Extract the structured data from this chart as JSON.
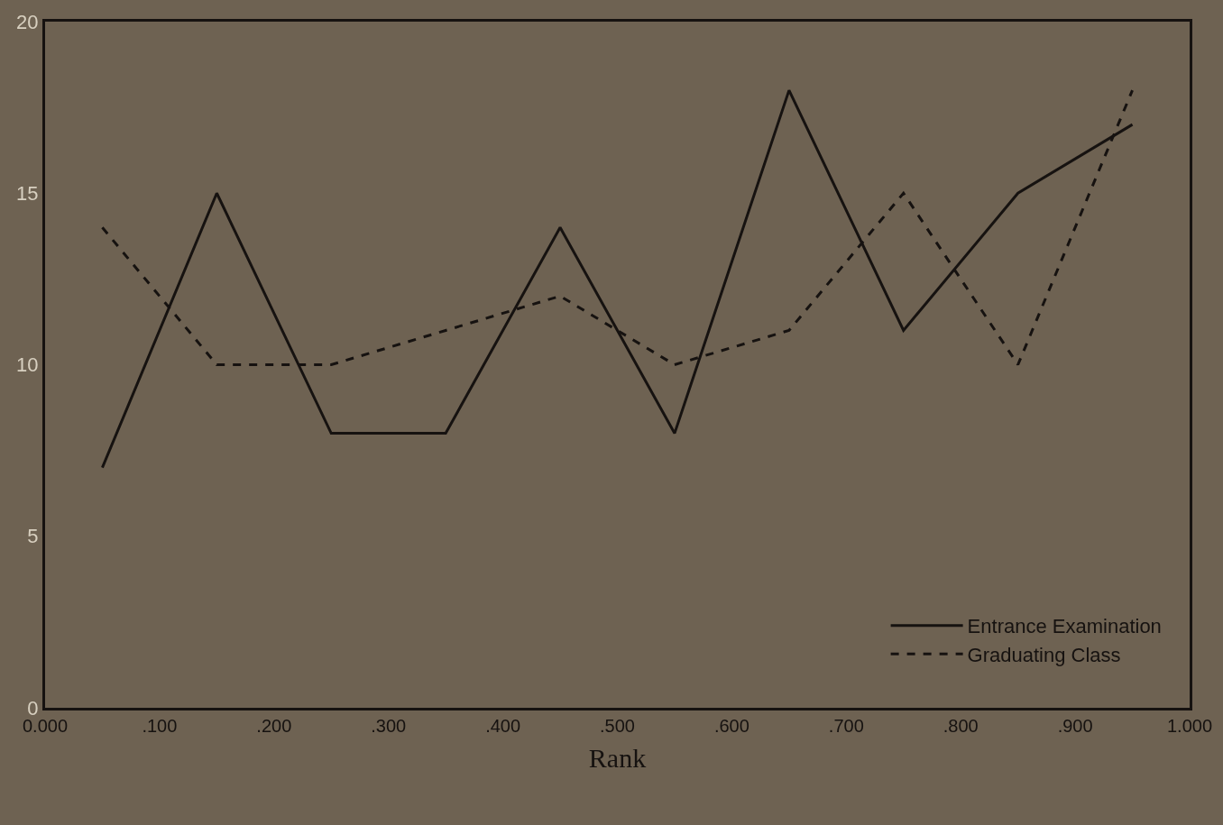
{
  "chart_data": {
    "type": "line",
    "xlabel": "Rank",
    "x": [
      0.05,
      0.15,
      0.25,
      0.35,
      0.45,
      0.55,
      0.65,
      0.75,
      0.85,
      0.95
    ],
    "series": [
      {
        "name": "Entrance Examination",
        "color": "#161210",
        "line_style": "solid",
        "values": [
          7,
          15,
          8,
          8,
          14,
          8,
          18,
          11,
          15,
          17
        ]
      },
      {
        "name": "Graduating Class",
        "color": "#161210",
        "line_style": "dashed",
        "values": [
          14,
          10,
          10,
          11,
          12,
          10,
          11,
          15,
          10,
          18
        ]
      }
    ],
    "xlim": [
      0,
      1
    ],
    "ylim": [
      0,
      20
    ],
    "xticks": [
      {
        "value": 0,
        "label": "0.000"
      },
      {
        "value": 0.1,
        "label": ".100"
      },
      {
        "value": 0.2,
        "label": ".200"
      },
      {
        "value": 0.3,
        "label": ".300"
      },
      {
        "value": 0.4,
        "label": ".400"
      },
      {
        "value": 0.5,
        "label": ".500"
      },
      {
        "value": 0.6,
        "label": ".600"
      },
      {
        "value": 0.7,
        "label": ".700"
      },
      {
        "value": 0.8,
        "label": ".800"
      },
      {
        "value": 0.9,
        "label": ".900"
      },
      {
        "value": 1,
        "label": "1.000"
      }
    ],
    "yticks": [
      0,
      5,
      10,
      15,
      20
    ],
    "grid": false,
    "marker": "none",
    "legend": "bottom right"
  }
}
